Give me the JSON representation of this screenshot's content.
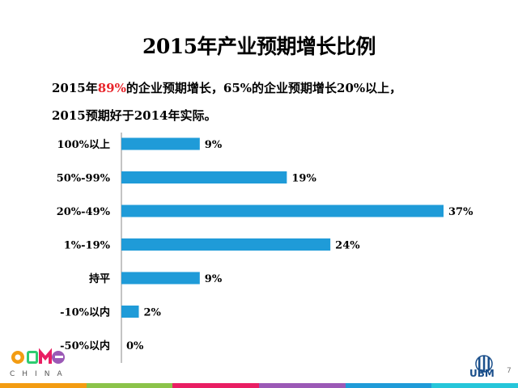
{
  "title": "2015年产业预期增长比例",
  "subtitle": {
    "line1_a": "2015年",
    "line1_red": "89%",
    "line1_b": "的企业预期增长，65%的企业预期增长20%以上，",
    "line2": "2015预期好于2014年实际。"
  },
  "chart_data": {
    "type": "bar",
    "orientation": "horizontal",
    "title": "2015年产业预期增长比例",
    "categories": [
      "100%以上",
      "50%-99%",
      "20%-49%",
      "1%-19%",
      "持平",
      "-10%以内",
      "-50%以内"
    ],
    "values": [
      9,
      19,
      37,
      24,
      9,
      2,
      0
    ],
    "value_labels": [
      "9%",
      "19%",
      "37%",
      "24%",
      "9%",
      "2%",
      "0%"
    ],
    "unit": "%",
    "xlim": [
      0,
      37
    ],
    "grid": false,
    "legend": "none",
    "bar_color": "#1f9bd8"
  },
  "footer": {
    "logo_left": "CBME",
    "logo_left_sub": "CHINA",
    "logo_right": "UBM",
    "page_number": "7"
  },
  "colors": {
    "accent_red": "#e8242a",
    "bar": "#1f9bd8",
    "ubm_blue": "#1a4f8b"
  }
}
